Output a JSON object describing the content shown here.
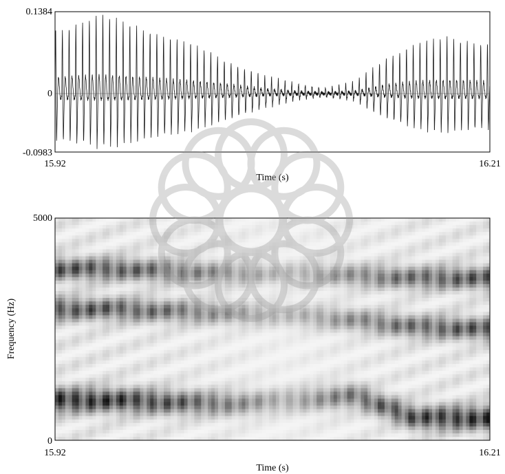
{
  "chart_data": [
    {
      "type": "line",
      "panel": "waveform",
      "xlabel": "Time (s)",
      "ylabel": "",
      "xlim": [
        15.92,
        16.21
      ],
      "ylim": [
        -0.0983,
        0.1384
      ],
      "x_tick_labels": [
        "15.92",
        "16.21"
      ],
      "y_tick_labels": [
        "0.1384",
        "0",
        "-0.0983"
      ],
      "grid": false,
      "series": [
        {
          "style": "dense oscillation (pitch pulses)",
          "envelope": {
            "x": [
              15.92,
              15.95,
              15.98,
              16.01,
              16.04,
              16.06,
              16.08,
              16.1,
              16.12,
              16.14,
              16.16,
              16.18,
              16.21
            ],
            "upper": [
              0.105,
              0.135,
              0.11,
              0.085,
              0.05,
              0.03,
              0.018,
              0.01,
              0.02,
              0.06,
              0.085,
              0.095,
              0.085
            ],
            "lower": [
              -0.085,
              -0.098,
              -0.085,
              -0.068,
              -0.045,
              -0.025,
              -0.012,
              -0.006,
              -0.012,
              -0.045,
              -0.065,
              -0.07,
              -0.065
            ]
          },
          "pulse_period_s": 0.0045
        }
      ]
    },
    {
      "type": "heatmap",
      "panel": "spectrogram",
      "xlabel": "Time (s)",
      "ylabel": "Frequency (Hz)",
      "xlim": [
        15.92,
        16.21
      ],
      "ylim": [
        0,
        5000
      ],
      "x_tick_labels": [
        "15.92",
        "16.21"
      ],
      "y_tick_labels": [
        "5000",
        "0"
      ],
      "colormap": "grayscale (dark = high energy)",
      "formant_tracks_hz": [
        {
          "x": [
            15.92,
            15.96,
            16.0,
            16.04,
            16.08,
            16.12,
            16.16,
            16.21
          ],
          "y": [
            900,
            900,
            850,
            820,
            900,
            1000,
            500,
            500
          ]
        },
        {
          "x": [
            15.92,
            15.96,
            16.0,
            16.04,
            16.08,
            16.12,
            16.16,
            16.21
          ],
          "y": [
            2950,
            2950,
            2900,
            2850,
            2800,
            2700,
            2550,
            2500
          ]
        },
        {
          "x": [
            15.92,
            15.96,
            16.0,
            16.04,
            16.08,
            16.12,
            16.16,
            16.21
          ],
          "y": [
            3850,
            3850,
            3800,
            3750,
            3750,
            3700,
            3650,
            3650
          ]
        }
      ]
    }
  ],
  "colors": {
    "background": "#ffffff",
    "axis": "#000000",
    "signal": "#1a1a1a",
    "watermark": "#9a9a9a"
  }
}
